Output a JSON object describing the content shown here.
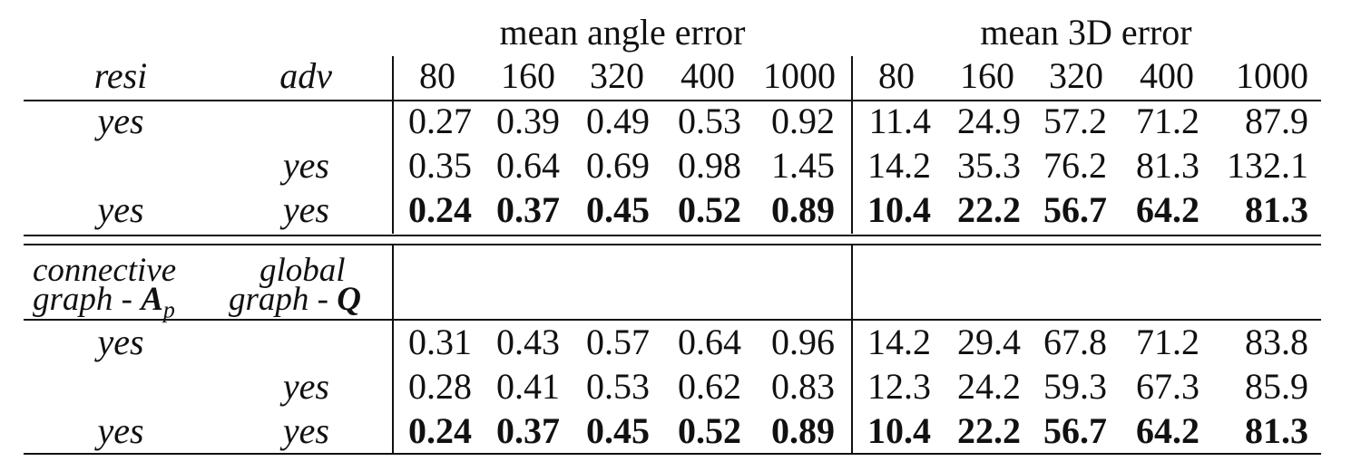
{
  "groups": {
    "angle_label": "mean angle error",
    "error3d_label": "mean 3D error"
  },
  "header": {
    "col1": "resi",
    "col2": "adv",
    "angle_cols": [
      "80",
      "160",
      "320",
      "400",
      "1000"
    ],
    "error3d_cols": [
      "80",
      "160",
      "320",
      "400",
      "1000"
    ]
  },
  "section1": {
    "rows": [
      {
        "c1": "yes",
        "c2": "",
        "angle": [
          "0.27",
          "0.39",
          "0.49",
          "0.53",
          "0.92"
        ],
        "error3d": [
          "11.4",
          "24.9",
          "57.2",
          "71.2",
          "87.9"
        ],
        "bold": false
      },
      {
        "c1": "",
        "c2": "yes",
        "angle": [
          "0.35",
          "0.64",
          "0.69",
          "0.98",
          "1.45"
        ],
        "error3d": [
          "14.2",
          "35.3",
          "76.2",
          "81.3",
          "132.1"
        ],
        "bold": false
      },
      {
        "c1": "yes",
        "c2": "yes",
        "angle": [
          "0.24",
          "0.37",
          "0.45",
          "0.52",
          "0.89"
        ],
        "error3d": [
          "10.4",
          "22.2",
          "56.7",
          "64.2",
          "81.3"
        ],
        "bold": true
      }
    ]
  },
  "section2": {
    "header": {
      "col1_line1": "connective",
      "col1_line2": "graph - ",
      "col1_sym": "A",
      "col1_sub": "p",
      "col2_line1": "global",
      "col2_line2": "graph - ",
      "col2_sym": "Q"
    },
    "rows": [
      {
        "c1": "yes",
        "c2": "",
        "angle": [
          "0.31",
          "0.43",
          "0.57",
          "0.64",
          "0.96"
        ],
        "error3d": [
          "14.2",
          "29.4",
          "67.8",
          "71.2",
          "83.8"
        ],
        "bold": false
      },
      {
        "c1": "",
        "c2": "yes",
        "angle": [
          "0.28",
          "0.41",
          "0.53",
          "0.62",
          "0.83"
        ],
        "error3d": [
          "12.3",
          "24.2",
          "59.3",
          "67.3",
          "85.9"
        ],
        "bold": false
      },
      {
        "c1": "yes",
        "c2": "yes",
        "angle": [
          "0.24",
          "0.37",
          "0.45",
          "0.52",
          "0.89"
        ],
        "error3d": [
          "10.4",
          "22.2",
          "56.7",
          "64.2",
          "81.3"
        ],
        "bold": true
      }
    ]
  }
}
